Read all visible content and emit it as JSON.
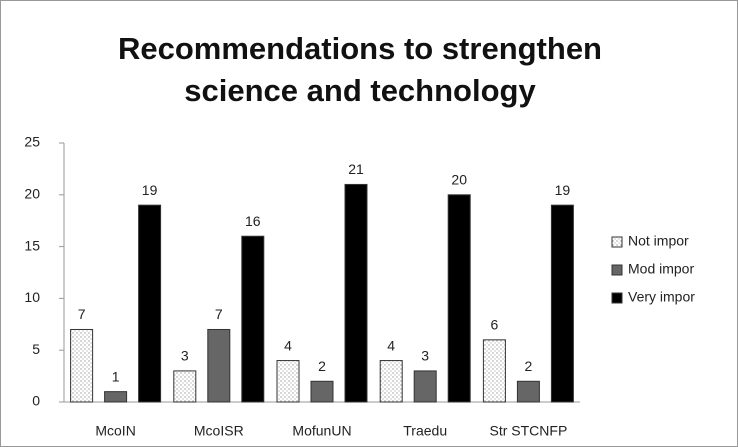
{
  "chart_data": {
    "type": "bar",
    "title": "Recommendations to strengthen science and technology",
    "categories": [
      "McoIN",
      "McoISR",
      "MofunUN",
      "Traedu",
      "Str STCNFP"
    ],
    "series": [
      {
        "name": "Not impor",
        "color": "#eeeeee",
        "values": [
          7,
          3,
          4,
          4,
          6
        ]
      },
      {
        "name": "Mod impor",
        "color": "#666666",
        "values": [
          1,
          7,
          2,
          3,
          2
        ]
      },
      {
        "name": "Very impor",
        "color": "#000000",
        "values": [
          19,
          16,
          21,
          20,
          19
        ]
      }
    ],
    "ylim": [
      0,
      25
    ],
    "yticks": [
      0,
      5,
      10,
      15,
      20,
      25
    ],
    "grid": false,
    "legend": "right"
  }
}
